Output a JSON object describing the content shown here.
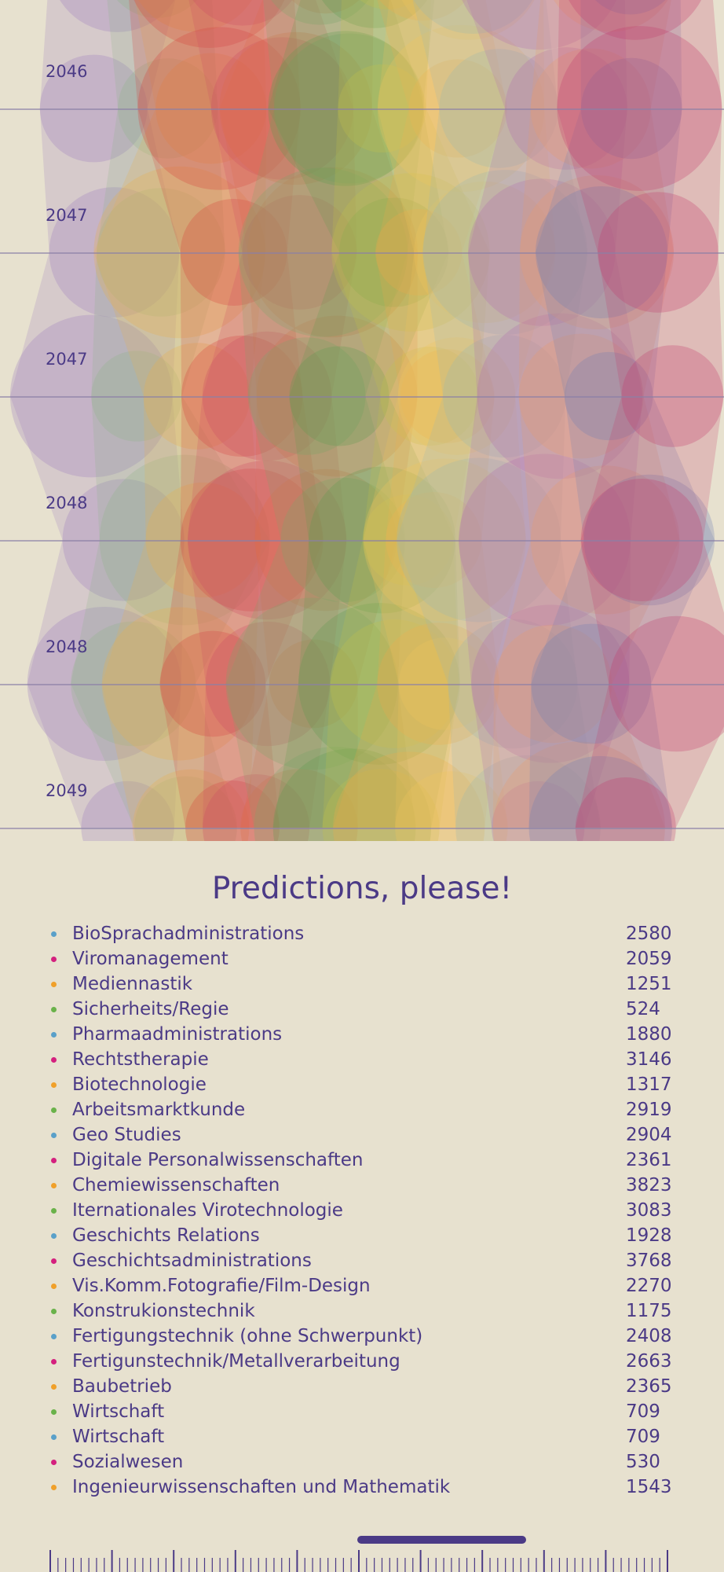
{
  "years": [
    "2046",
    "2047",
    "2047",
    "2048",
    "2048",
    "2049"
  ],
  "title": "Predictions, please!",
  "palette": {
    "blue": "#5aa0c9",
    "magenta": "#d4207e",
    "orange": "#f0a02a",
    "green": "#6ab24a",
    "text": "#4b3a86",
    "background": "#e7e1cf"
  },
  "legend": [
    {
      "name": "BioSprachadministrations",
      "value": "2580",
      "color": "#5aa0c9"
    },
    {
      "name": "Viromanagement",
      "value": "2059",
      "color": "#d4207e"
    },
    {
      "name": "Mediennastik",
      "value": "1251",
      "color": "#f0a02a"
    },
    {
      "name": "Sicherheits/Regie",
      "value": "524",
      "color": "#6ab24a"
    },
    {
      "name": "Pharmaadministrations",
      "value": "1880",
      "color": "#5aa0c9"
    },
    {
      "name": "Rechtstherapie",
      "value": "3146",
      "color": "#d4207e"
    },
    {
      "name": "Biotechnologie",
      "value": "1317",
      "color": "#f0a02a"
    },
    {
      "name": "Arbeitsmarktkunde",
      "value": "2919",
      "color": "#6ab24a"
    },
    {
      "name": "Geo Studies",
      "value": "2904",
      "color": "#5aa0c9"
    },
    {
      "name": "Digitale Personalwissenschaften",
      "value": "2361",
      "color": "#d4207e"
    },
    {
      "name": "Chemiewissenschaften",
      "value": "3823",
      "color": "#f0a02a"
    },
    {
      "name": "Iternationales Virotechnologie",
      "value": "3083",
      "color": "#6ab24a"
    },
    {
      "name": "Geschichts Relations",
      "value": "1928",
      "color": "#5aa0c9"
    },
    {
      "name": "Geschichtsadministrations",
      "value": "3768",
      "color": "#d4207e"
    },
    {
      "name": "Vis.Komm.Fotografie/Film-Design",
      "value": "2270",
      "color": "#f0a02a"
    },
    {
      "name": "Konstrukionstechnik",
      "value": "1175",
      "color": "#6ab24a"
    },
    {
      "name": "Fertigungstechnik (ohne Schwerpunkt)",
      "value": "2408",
      "color": "#5aa0c9"
    },
    {
      "name": "Fertigunstechnik/Metallverarbeitung",
      "value": "2663",
      "color": "#d4207e"
    },
    {
      "name": "Baubetrieb",
      "value": "2365",
      "color": "#f0a02a"
    },
    {
      "name": "Wirtschaft",
      "value": "709",
      "color": "#6ab24a"
    },
    {
      "name": "Wirtschaft",
      "value": "709",
      "color": "#5aa0c9"
    },
    {
      "name": "Sozialwesen",
      "value": "530",
      "color": "#d4207e"
    },
    {
      "name": "Ingenieurwissenschaften und Mathematik",
      "value": "1543",
      "color": "#f0a02a"
    }
  ]
}
